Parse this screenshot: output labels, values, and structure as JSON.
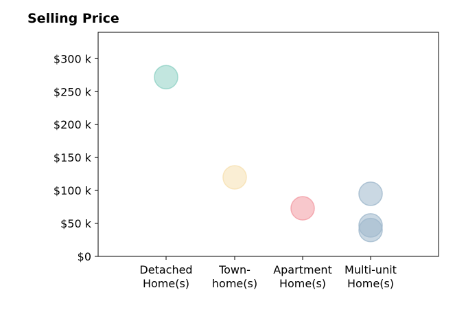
{
  "chart_data": {
    "type": "scatter",
    "title": "Selling Price",
    "xlabel": "",
    "ylabel": "",
    "categories": [
      "Detached\nHome(s)",
      "Town-\nhome(s)",
      "Apartment\nHome(s)",
      "Multi-unit\nHome(s)"
    ],
    "ylim": [
      0,
      340000
    ],
    "yticks": [
      0,
      50000,
      100000,
      150000,
      200000,
      250000,
      300000
    ],
    "ytick_labels": [
      "$0",
      "$50 k",
      "$100 k",
      "$150 k",
      "$200 k",
      "$250 k",
      "$300 k"
    ],
    "grid": false,
    "points": [
      {
        "category": "Detached\nHome(s)",
        "value": 272000,
        "color": "#8fd1c4"
      },
      {
        "category": "Town-\nhome(s)",
        "value": 120000,
        "color": "#f6e0b0"
      },
      {
        "category": "Apartment\nHome(s)",
        "value": 73000,
        "color": "#f29aa3"
      },
      {
        "category": "Multi-unit\nHome(s)",
        "value": 95000,
        "color": "#9fb8cc"
      },
      {
        "category": "Multi-unit\nHome(s)",
        "value": 47000,
        "color": "#9fb8cc"
      },
      {
        "category": "Multi-unit\nHome(s)",
        "value": 40000,
        "color": "#9fb8cc"
      }
    ]
  }
}
